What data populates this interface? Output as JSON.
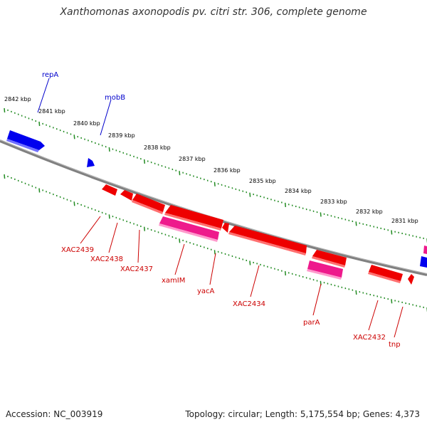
{
  "title": "Xanthomonas axonopodis pv. citri str. 306, complete genome",
  "footer": {
    "accession": "Accession: NC_003919",
    "summary": "Topology: circular; Length: 5,175,554 bp; Genes: 4,373"
  },
  "colors": {
    "forward_gene": "#0000ee",
    "reverse_gene": "#ee0000",
    "pseudo_gene": "#ee1a8c",
    "backbone": "#808080",
    "tick": "#228b22",
    "forward_label": "#0000cc",
    "reverse_label": "#cc0000"
  },
  "ruler_labels": [
    "2842 kbp",
    "2841 kbp",
    "2840 kbp",
    "2839 kbp",
    "2838 kbp",
    "2837 kbp",
    "2836 kbp",
    "2835 kbp",
    "2834 kbp",
    "2833 kbp",
    "2832 kbp",
    "2831 kbp"
  ],
  "forward_genes": [
    "repA",
    "mobB"
  ],
  "reverse_genes": [
    "XAC2439",
    "XAC2438",
    "XAC2437",
    "xamIM",
    "yacA",
    "XAC2434",
    "parA",
    "XAC2432",
    "tnp"
  ]
}
